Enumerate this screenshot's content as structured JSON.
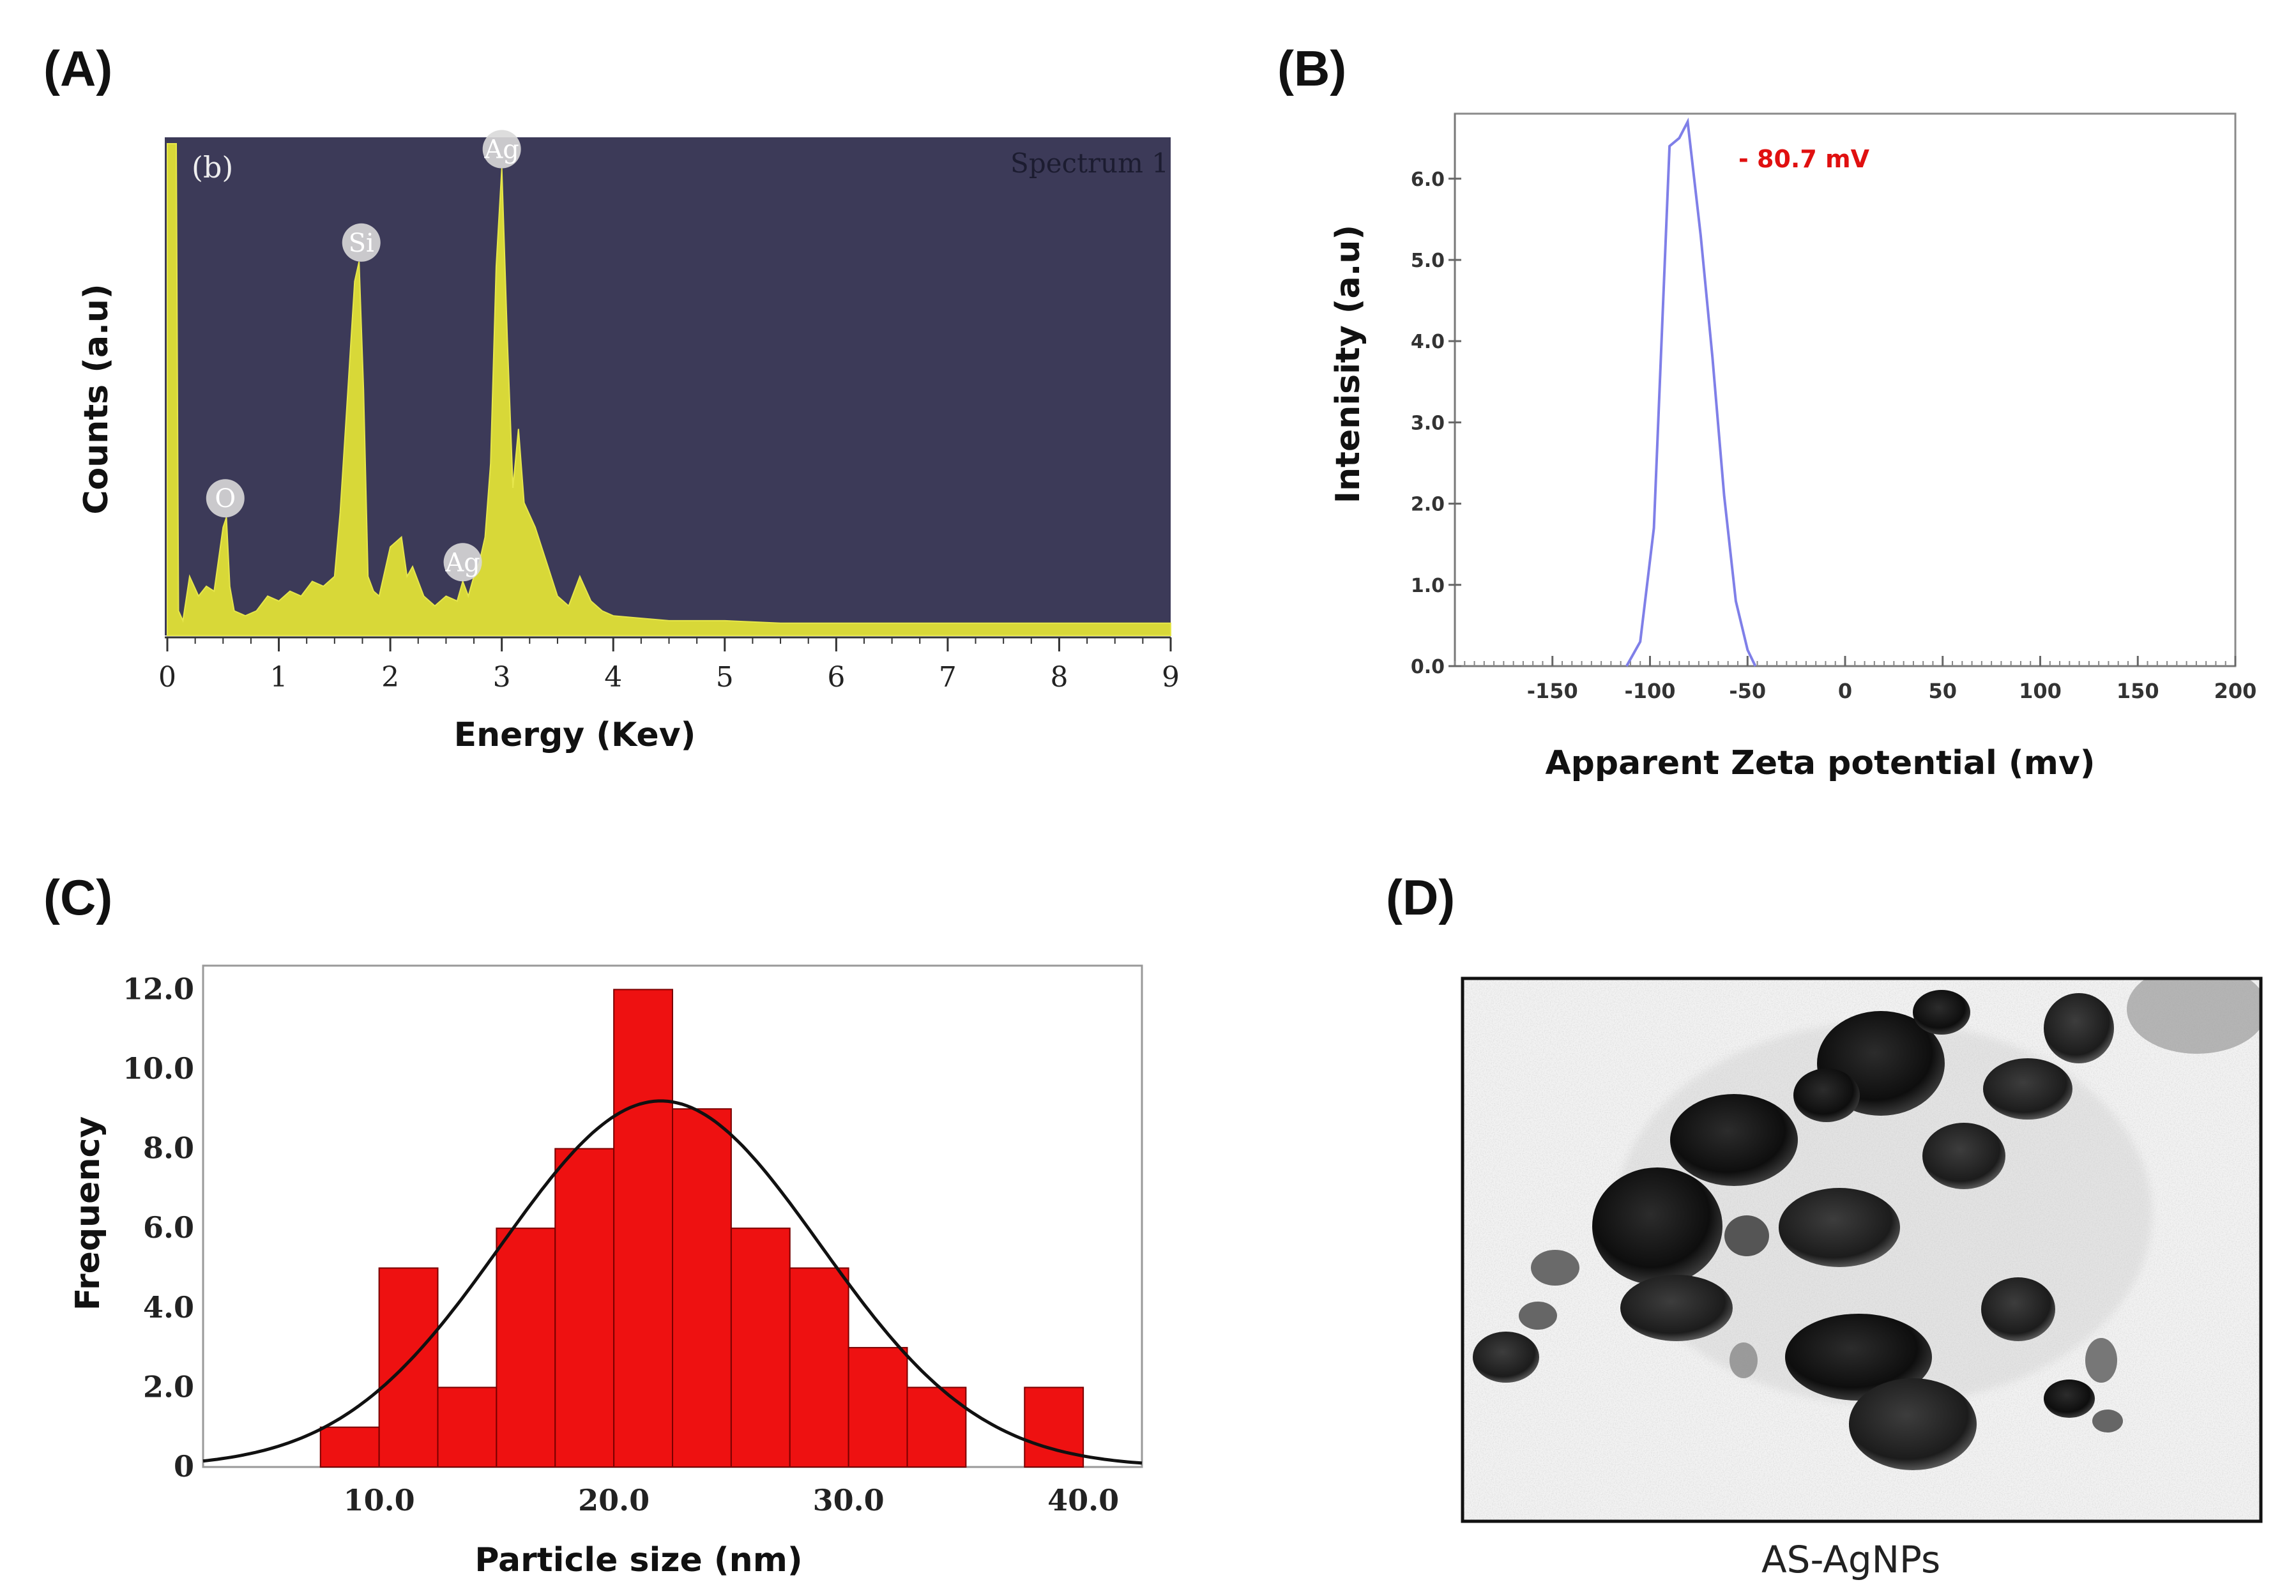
{
  "panels": {
    "A": {
      "letter": "(A)",
      "inner_tag": "(b)",
      "spectrum_label": "Spectrum 1",
      "xlabel": "Energy (Kev)",
      "ylabel": "Counts (a.u)",
      "bg_color": "#3c3a58",
      "fill_color": "#d8d838"
    },
    "B": {
      "letter": "(B)",
      "xlabel": "Apparent Zeta potential (mv)",
      "ylabel": "Intenisity (a.u)",
      "annotation": "- 80.7 mV",
      "line_color": "#7f7fe8",
      "annotation_color": "#e01010"
    },
    "C": {
      "letter": "(C)",
      "xlabel": "Particle size (nm)",
      "ylabel": "Frequency",
      "bar_color": "#ee1111"
    },
    "D": {
      "letter": "(D)",
      "caption": "AS-AgNPs"
    }
  },
  "chart_data": [
    {
      "panel": "A",
      "type": "area",
      "xlim": [
        0,
        9
      ],
      "x_ticks": [
        "0",
        "1",
        "2",
        "3",
        "4",
        "5",
        "6",
        "7",
        "8",
        "9"
      ],
      "x": [
        0,
        0.02,
        0.04,
        0.06,
        0.08,
        0.1,
        0.14,
        0.2,
        0.28,
        0.35,
        0.42,
        0.5,
        0.53,
        0.56,
        0.6,
        0.7,
        0.8,
        0.9,
        1.0,
        1.1,
        1.2,
        1.3,
        1.4,
        1.5,
        1.55,
        1.62,
        1.68,
        1.72,
        1.76,
        1.8,
        1.85,
        1.9,
        2.0,
        2.1,
        2.15,
        2.2,
        2.3,
        2.4,
        2.5,
        2.6,
        2.65,
        2.7,
        2.75,
        2.8,
        2.85,
        2.9,
        2.95,
        3.0,
        3.05,
        3.1,
        3.15,
        3.2,
        3.3,
        3.4,
        3.5,
        3.6,
        3.7,
        3.8,
        3.9,
        4.0,
        4.5,
        5.0,
        5.5,
        6.0,
        6.5,
        7.0,
        7.5,
        8.0,
        8.5,
        9.0
      ],
      "y": [
        100,
        100,
        100,
        100,
        100,
        5,
        3,
        12,
        8,
        10,
        9,
        22,
        24,
        10,
        5,
        4,
        5,
        8,
        7,
        9,
        8,
        11,
        10,
        12,
        25,
        50,
        72,
        76,
        50,
        12,
        9,
        8,
        18,
        20,
        12,
        14,
        8,
        6,
        8,
        7,
        11,
        8,
        12,
        15,
        20,
        35,
        75,
        95,
        60,
        30,
        42,
        27,
        22,
        15,
        8,
        6,
        12,
        7,
        5,
        4,
        3,
        3,
        2.5,
        2.5,
        2.5,
        2.5,
        2.5,
        2.5,
        2.5,
        2.5
      ],
      "peak_labels": [
        {
          "text": "O",
          "x": 0.52,
          "y": 24
        },
        {
          "text": "Si",
          "x": 1.74,
          "y": 76
        },
        {
          "text": "Ag",
          "x": 2.65,
          "y": 11
        },
        {
          "text": "Ag",
          "x": 3.0,
          "y": 95
        }
      ]
    },
    {
      "panel": "B",
      "type": "line",
      "xlim": [
        -200,
        200
      ],
      "ylim": [
        0,
        6.8
      ],
      "x_ticks": [
        "-150",
        "-100",
        "-50",
        "0",
        "50",
        "100",
        "150",
        "200"
      ],
      "y_ticks": [
        "0.0",
        "1.0",
        "2.0",
        "3.0",
        "4.0",
        "5.0",
        "6.0"
      ],
      "x": [
        -112,
        -105,
        -98,
        -90,
        -85,
        -80.7,
        -74,
        -68,
        -62,
        -56,
        -50,
        -46
      ],
      "y": [
        0,
        0.3,
        1.7,
        6.4,
        6.5,
        6.7,
        5.3,
        3.8,
        2.1,
        0.8,
        0.2,
        0
      ]
    },
    {
      "panel": "C",
      "type": "bar",
      "xlim": [
        2.5,
        42.5
      ],
      "ylim": [
        0,
        12.6
      ],
      "x_ticks": [
        "10.0",
        "20.0",
        "30.0",
        "40.0"
      ],
      "y_ticks": [
        "0",
        "2.0",
        "4.0",
        "6.0",
        "8.0",
        "10.0",
        "12.0"
      ],
      "bin_edges": [
        7.5,
        10,
        12.5,
        15,
        17.5,
        20,
        22.5,
        25,
        27.5,
        30,
        32.5,
        35,
        37.5,
        40
      ],
      "values": [
        1,
        5,
        2,
        6,
        8,
        12,
        9,
        6,
        5,
        3,
        2,
        0,
        2
      ],
      "fit": {
        "type": "normal",
        "mean": 22,
        "sd": 6.8,
        "peak": 9.2
      }
    }
  ]
}
